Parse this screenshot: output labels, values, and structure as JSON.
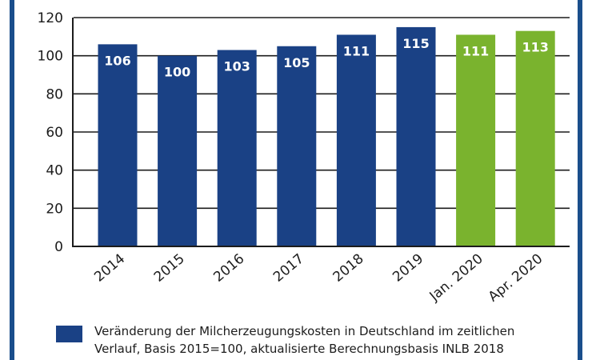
{
  "chart_data": {
    "type": "bar",
    "categories": [
      "2014",
      "2015",
      "2016",
      "2017",
      "2018",
      "2019",
      "Jan. 2020",
      "Apr. 2020"
    ],
    "values": [
      106,
      100,
      103,
      105,
      111,
      115,
      111,
      113
    ],
    "data_labels": [
      "106",
      "100",
      "103",
      "105",
      "111",
      "115",
      "111",
      "113"
    ],
    "bar_colors": [
      "#1a4185",
      "#1a4185",
      "#1a4185",
      "#1a4185",
      "#1a4185",
      "#1a4185",
      "#7ab32e",
      "#7ab32e"
    ],
    "ylim": [
      0,
      120
    ],
    "yticks": [
      "0",
      "20",
      "40",
      "60",
      "80",
      "100",
      "120"
    ],
    "grid": "horizontal",
    "xlabel": "",
    "ylabel": "",
    "legend_position": "bottom",
    "legend": {
      "color": "#1a4185",
      "line1": "Veränderung der Milcherzeugungskosten in Deutschland im zeitlichen",
      "line2": "Verlauf, Basis 2015=100, aktualisierte Berechnungsbasis INLB 2018"
    }
  }
}
